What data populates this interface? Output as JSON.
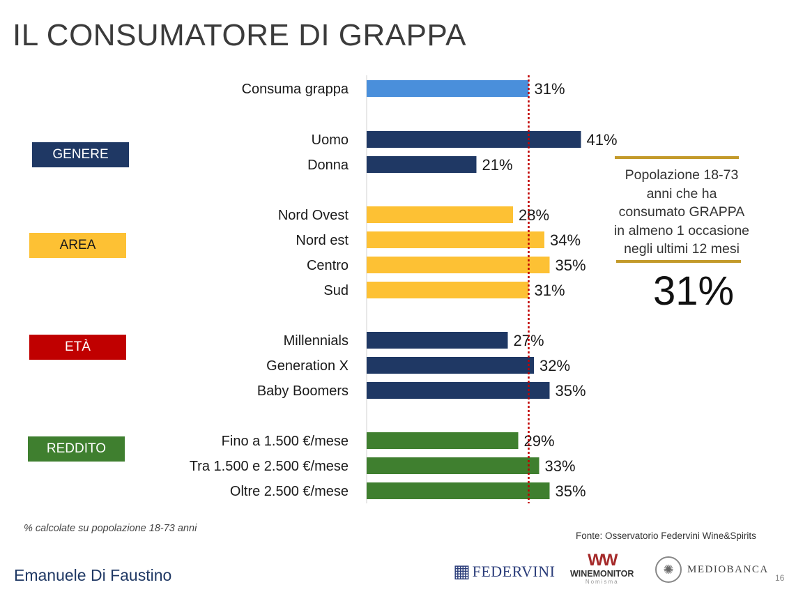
{
  "title": "IL CONSUMATORE DI GRAPPA",
  "groups": {
    "genere": "GENERE",
    "area": "AREA",
    "eta": "ETÀ",
    "reddito": "REDDITO"
  },
  "colors": {
    "total": "#4a8fdb",
    "genere": "#1f3864",
    "area": "#fdc134",
    "eta": "#c00000",
    "eta_bars": "#1f3864",
    "reddito": "#3f7f2f",
    "reference_line": "#c00000",
    "gold": "#c39a2a"
  },
  "chart_data": {
    "type": "bar",
    "orientation": "horizontal",
    "title": "IL CONSUMATORE DI GRAPPA",
    "xlim": [
      0,
      45
    ],
    "reference_value": 31,
    "categories": [
      "Consuma grappa",
      "Uomo",
      "Donna",
      "Nord Ovest",
      "Nord est",
      "Centro",
      "Sud",
      "Millennials",
      "Generation X",
      "Baby Boomers",
      "Fino a 1.500 €/mese",
      "Tra 1.500 e 2.500 €/mese",
      "Oltre 2.500 €/mese"
    ],
    "values": [
      31,
      41,
      21,
      28,
      34,
      35,
      31,
      27,
      32,
      35,
      29,
      33,
      35
    ],
    "value_labels": [
      "31%",
      "41%",
      "21%",
      "28%",
      "34%",
      "35%",
      "31%",
      "27%",
      "32%",
      "35%",
      "29%",
      "33%",
      "35%"
    ],
    "series_group": [
      "total",
      "genere",
      "genere",
      "area",
      "area",
      "area",
      "area",
      "eta",
      "eta",
      "eta",
      "reddito",
      "reddito",
      "reddito"
    ]
  },
  "info_box": {
    "lines": [
      "Popolazione 18-73",
      "anni che ha",
      "consumato GRAPPA",
      "in almeno 1 occasione",
      "negli ultimi 12 mesi"
    ],
    "big_value": "31%"
  },
  "footnote": "% calcolate su popolazione 18-73 anni",
  "source": "Fonte: Osservatorio Federvini Wine&Spirits",
  "author": "Emanuele Di Faustino",
  "page_number": "16",
  "logos": {
    "federvini": "FEDERVINI",
    "winemonitor": "WINEMONITOR",
    "winemonitor_sub": "Nomisma",
    "mediobanca": "MEDIOBANCA"
  }
}
